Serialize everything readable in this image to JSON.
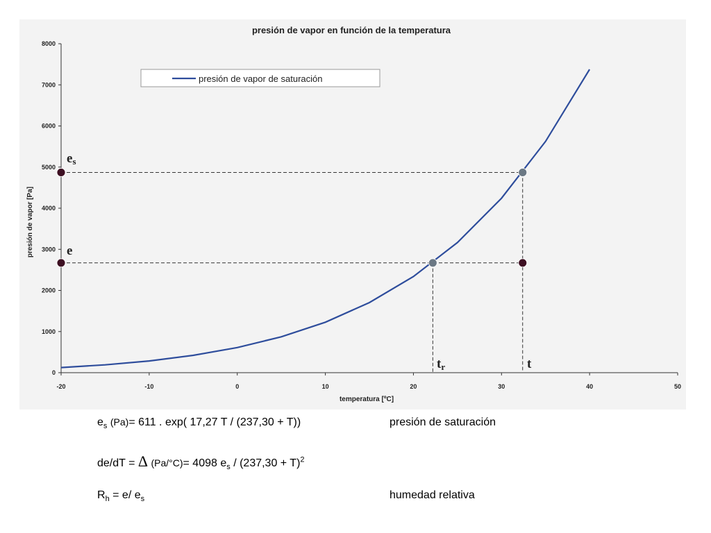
{
  "chart_data": {
    "type": "line",
    "title": "presión de vapor en función de la temperatura",
    "xlabel": "temperatura [ºC]",
    "ylabel": "presión de vapor [Pa]",
    "xlim": [
      -20,
      50
    ],
    "ylim": [
      0,
      8000
    ],
    "x_ticks": [
      -20,
      -10,
      0,
      10,
      20,
      30,
      40,
      50
    ],
    "y_ticks": [
      0,
      1000,
      2000,
      3000,
      4000,
      5000,
      6000,
      7000,
      8000
    ],
    "grid": false,
    "legend_position": "top-left",
    "series": [
      {
        "name": "presión de vapor de saturación",
        "color": "#2e4d9c",
        "x": [
          -20,
          -15,
          -10,
          -5,
          0,
          5,
          10,
          15,
          20,
          25,
          30,
          35,
          40
        ],
        "y": [
          125,
          191,
          286,
          422,
          611,
          872,
          1227,
          1704,
          2337,
          3167,
          4243,
          5623,
          7376
        ]
      }
    ],
    "markers": [
      {
        "name": "es-axis-point",
        "x": -20,
        "y": 4870,
        "color": "#3d0f22"
      },
      {
        "name": "e-axis-point",
        "x": -20,
        "y": 2670,
        "color": "#3d0f22"
      },
      {
        "name": "saturation-point",
        "x": 32.4,
        "y": 4870,
        "color": "#6b7884"
      },
      {
        "name": "dewpoint-point",
        "x": 22.2,
        "y": 2670,
        "color": "#6b7884"
      },
      {
        "name": "state-point",
        "x": 32.4,
        "y": 2670,
        "color": "#3d0f22"
      }
    ],
    "annotations": {
      "es_main": "e",
      "es_sub": "s",
      "e_main": "e",
      "tr_main": "t",
      "tr_sub": "r",
      "t_main": "t"
    }
  },
  "formulas": {
    "line1": {
      "es": "e",
      "es_sub": "s",
      "unit": "(Pa)",
      "expr": "=  611 . exp( 17,27  T  /  (237,30 + T))",
      "desc": "presión de saturación"
    },
    "line2": {
      "lhs": "de/dT = ",
      "delta": "Δ",
      "unit": "(Pa/°C)",
      "expr_a": "= 4098 e",
      "expr_sub": "s",
      "expr_b": " /  (237,30 + T)",
      "expr_sup": "2"
    },
    "line3": {
      "lhs": "R",
      "lhs_sub": "h",
      "expr": " = e/ e",
      "expr_sub": "s",
      "desc": "humedad relativa"
    }
  }
}
